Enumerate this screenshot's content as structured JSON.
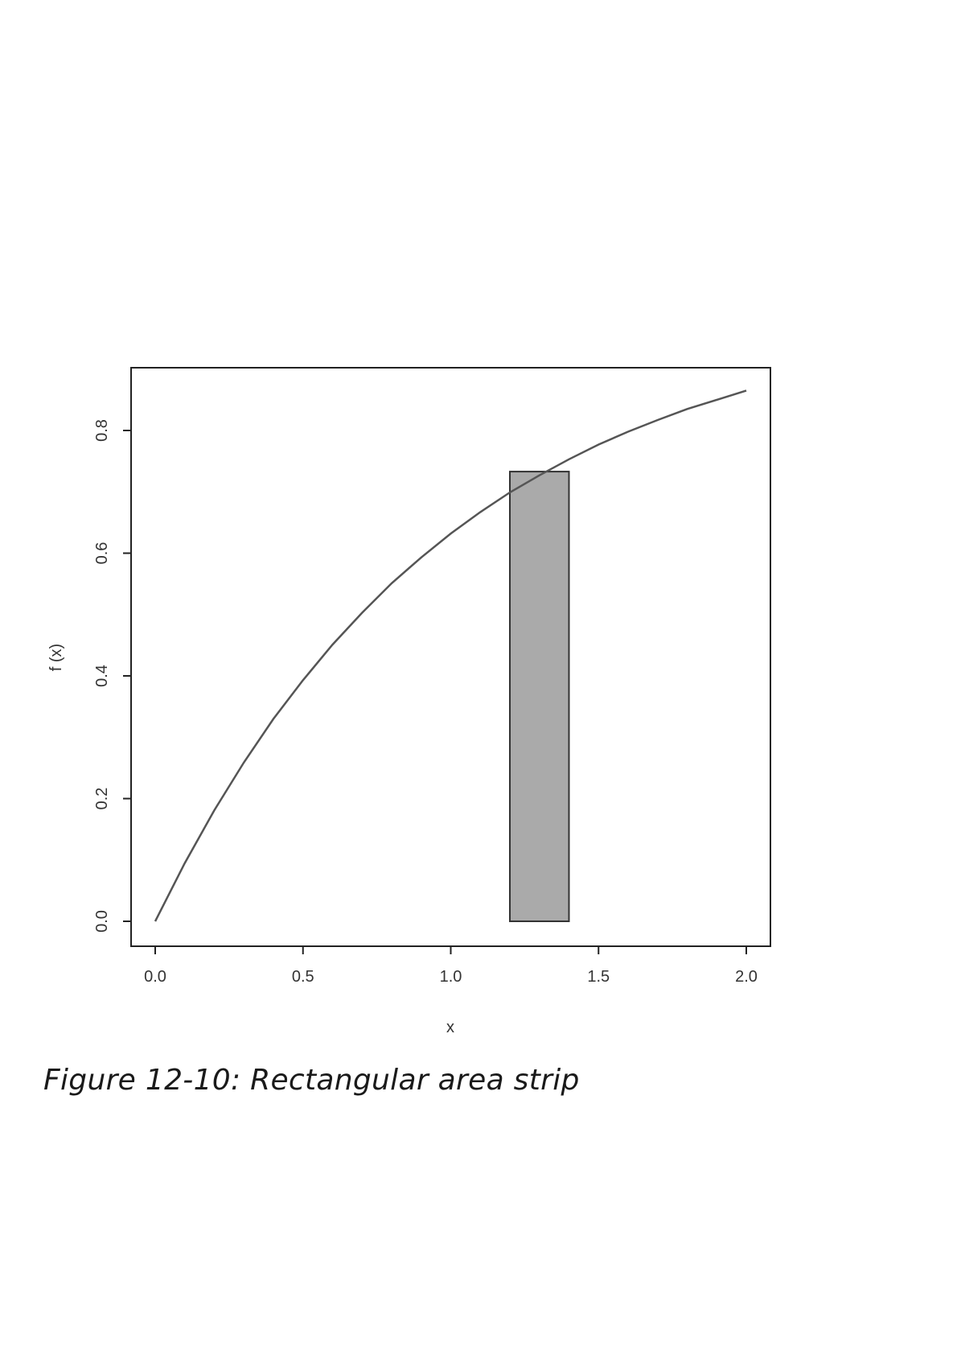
{
  "caption": "Figure 12-10: Rectangular area strip",
  "chart_data": {
    "type": "line",
    "xlabel": "x",
    "ylabel": "f (x)",
    "xlim": [
      0.0,
      2.0
    ],
    "ylim": [
      0.0,
      0.87
    ],
    "x_ticks": [
      "0.0",
      "0.5",
      "1.0",
      "1.5",
      "2.0"
    ],
    "y_ticks": [
      "0.0",
      "0.2",
      "0.4",
      "0.6",
      "0.8"
    ],
    "grid": false,
    "series": [
      {
        "x": [
          0.0,
          0.1,
          0.2,
          0.3,
          0.4,
          0.5,
          0.6,
          0.7,
          0.8,
          0.9,
          1.0,
          1.1,
          1.2,
          1.3,
          1.4,
          1.5,
          1.6,
          1.7,
          1.8,
          1.9,
          2.0
        ],
        "y": [
          0.0,
          0.095,
          0.181,
          0.259,
          0.33,
          0.393,
          0.451,
          0.503,
          0.551,
          0.593,
          0.632,
          0.667,
          0.699,
          0.727,
          0.753,
          0.777,
          0.798,
          0.817,
          0.835,
          0.85,
          0.865
        ],
        "color": "#555555"
      }
    ],
    "strip": {
      "x_start": 1.2,
      "x_end": 1.4,
      "height": 0.733,
      "fill": "#aaaaaa",
      "stroke": "#333333"
    }
  }
}
